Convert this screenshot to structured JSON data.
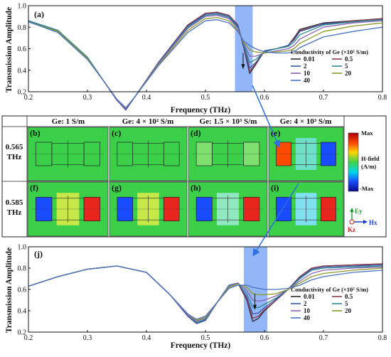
{
  "colors": {
    "band": "#6f9ef5",
    "arrow": "#2d6fdc",
    "series": [
      "#2c2c3a",
      "#8a3a4a",
      "#3a55a8",
      "#2b8a8f",
      "#8a62b5",
      "#8c9a2b",
      "#4a72c2"
    ]
  },
  "chart_data": [
    {
      "type": "line",
      "panel_letter": "(a)",
      "xlabel": "Frequency (THz)",
      "ylabel": "Transmission Amplitude",
      "xlim": [
        0.2,
        0.8
      ],
      "ylim": [
        0.2,
        1.0
      ],
      "xticks": [
        "0.2",
        "0.3",
        "0.4",
        "0.5",
        "0.6",
        "0.7",
        "0.8"
      ],
      "yticks": [
        "0.2",
        "0.4",
        "0.6",
        "0.8",
        "1.0"
      ],
      "highlight_band": [
        0.55,
        0.58
      ],
      "legend_title": "Conductivity of Ge (×10² S/m)",
      "legend_placement": "right",
      "x": [
        0.2,
        0.25,
        0.3,
        0.33,
        0.35,
        0.365,
        0.38,
        0.42,
        0.47,
        0.5,
        0.52,
        0.54,
        0.555,
        0.565,
        0.575,
        0.585,
        0.6,
        0.62,
        0.64,
        0.65,
        0.66,
        0.7,
        0.75,
        0.8
      ],
      "series": [
        {
          "name": "0.01",
          "values": [
            0.86,
            0.77,
            0.52,
            0.28,
            0.12,
            0.03,
            0.15,
            0.47,
            0.82,
            0.93,
            0.94,
            0.91,
            0.82,
            0.61,
            0.37,
            0.45,
            0.58,
            0.6,
            0.63,
            0.7,
            0.78,
            0.84,
            0.86,
            0.88
          ]
        },
        {
          "name": "0.5",
          "values": [
            0.86,
            0.77,
            0.52,
            0.28,
            0.12,
            0.035,
            0.15,
            0.47,
            0.82,
            0.93,
            0.94,
            0.91,
            0.82,
            0.62,
            0.39,
            0.46,
            0.58,
            0.6,
            0.63,
            0.69,
            0.77,
            0.83,
            0.86,
            0.88
          ]
        },
        {
          "name": "2",
          "values": [
            0.86,
            0.77,
            0.52,
            0.28,
            0.12,
            0.035,
            0.15,
            0.47,
            0.81,
            0.92,
            0.93,
            0.9,
            0.81,
            0.63,
            0.42,
            0.47,
            0.58,
            0.6,
            0.63,
            0.68,
            0.76,
            0.83,
            0.85,
            0.87
          ]
        },
        {
          "name": "5",
          "values": [
            0.86,
            0.77,
            0.52,
            0.28,
            0.12,
            0.04,
            0.15,
            0.46,
            0.8,
            0.91,
            0.92,
            0.89,
            0.8,
            0.64,
            0.47,
            0.5,
            0.57,
            0.6,
            0.62,
            0.66,
            0.73,
            0.82,
            0.85,
            0.87
          ]
        },
        {
          "name": "10",
          "values": [
            0.85,
            0.76,
            0.51,
            0.28,
            0.12,
            0.04,
            0.15,
            0.46,
            0.79,
            0.9,
            0.91,
            0.88,
            0.79,
            0.65,
            0.53,
            0.53,
            0.56,
            0.58,
            0.6,
            0.63,
            0.69,
            0.8,
            0.84,
            0.86
          ]
        },
        {
          "name": "20",
          "values": [
            0.85,
            0.76,
            0.51,
            0.28,
            0.13,
            0.05,
            0.15,
            0.45,
            0.77,
            0.88,
            0.89,
            0.86,
            0.77,
            0.66,
            0.59,
            0.57,
            0.56,
            0.57,
            0.58,
            0.6,
            0.65,
            0.76,
            0.81,
            0.84
          ]
        },
        {
          "name": "40",
          "values": [
            0.85,
            0.75,
            0.5,
            0.28,
            0.13,
            0.05,
            0.15,
            0.44,
            0.75,
            0.86,
            0.87,
            0.84,
            0.76,
            0.67,
            0.63,
            0.6,
            0.57,
            0.56,
            0.56,
            0.57,
            0.61,
            0.71,
            0.76,
            0.8
          ]
        }
      ]
    },
    {
      "type": "line",
      "panel_letter": "(j)",
      "xlabel": "Frequency (THz)",
      "ylabel": "Transmission Amplitude",
      "xlim": [
        0.2,
        0.8
      ],
      "ylim": [
        0.2,
        1.0
      ],
      "xticks": [
        "0.2",
        "0.3",
        "0.4",
        "0.5",
        "0.6",
        "0.7",
        "0.8"
      ],
      "yticks": [
        "0.2",
        "0.4",
        "0.6",
        "0.8",
        "1.0"
      ],
      "highlight_band": [
        0.565,
        0.605
      ],
      "legend_title": "Conductivity of Ge (×10² S/m)",
      "legend_placement": "bottom-right",
      "x": [
        0.2,
        0.25,
        0.3,
        0.35,
        0.4,
        0.44,
        0.47,
        0.485,
        0.5,
        0.52,
        0.54,
        0.555,
        0.57,
        0.58,
        0.59,
        0.6,
        0.62,
        0.64,
        0.66,
        0.68,
        0.7,
        0.75,
        0.8
      ],
      "series": [
        {
          "name": "0.01",
          "values": [
            0.63,
            0.72,
            0.79,
            0.82,
            0.76,
            0.55,
            0.35,
            0.28,
            0.31,
            0.48,
            0.64,
            0.66,
            0.5,
            0.3,
            0.33,
            0.4,
            0.5,
            0.6,
            0.72,
            0.8,
            0.82,
            0.83,
            0.84
          ]
        },
        {
          "name": "0.5",
          "values": [
            0.63,
            0.72,
            0.79,
            0.82,
            0.76,
            0.55,
            0.35,
            0.28,
            0.31,
            0.48,
            0.64,
            0.66,
            0.51,
            0.33,
            0.35,
            0.41,
            0.5,
            0.6,
            0.72,
            0.8,
            0.82,
            0.83,
            0.84
          ]
        },
        {
          "name": "2",
          "values": [
            0.63,
            0.72,
            0.79,
            0.82,
            0.76,
            0.55,
            0.35,
            0.28,
            0.31,
            0.48,
            0.64,
            0.66,
            0.53,
            0.37,
            0.38,
            0.43,
            0.51,
            0.6,
            0.71,
            0.79,
            0.81,
            0.82,
            0.83
          ]
        },
        {
          "name": "5",
          "values": [
            0.63,
            0.72,
            0.79,
            0.82,
            0.76,
            0.55,
            0.36,
            0.29,
            0.32,
            0.48,
            0.64,
            0.66,
            0.56,
            0.43,
            0.43,
            0.46,
            0.52,
            0.6,
            0.7,
            0.78,
            0.8,
            0.81,
            0.82
          ]
        },
        {
          "name": "10",
          "values": [
            0.63,
            0.72,
            0.79,
            0.82,
            0.76,
            0.55,
            0.36,
            0.3,
            0.33,
            0.48,
            0.63,
            0.66,
            0.59,
            0.5,
            0.49,
            0.5,
            0.54,
            0.6,
            0.68,
            0.75,
            0.78,
            0.8,
            0.81
          ]
        },
        {
          "name": "20",
          "values": [
            0.63,
            0.72,
            0.79,
            0.82,
            0.76,
            0.55,
            0.37,
            0.31,
            0.34,
            0.48,
            0.62,
            0.65,
            0.62,
            0.56,
            0.55,
            0.55,
            0.56,
            0.6,
            0.66,
            0.72,
            0.75,
            0.78,
            0.8
          ]
        },
        {
          "name": "40",
          "values": [
            0.63,
            0.72,
            0.79,
            0.82,
            0.76,
            0.55,
            0.37,
            0.32,
            0.35,
            0.48,
            0.61,
            0.64,
            0.64,
            0.62,
            0.61,
            0.6,
            0.6,
            0.61,
            0.64,
            0.69,
            0.72,
            0.76,
            0.78
          ]
        }
      ]
    }
  ],
  "field_grid": {
    "headers": [
      "Ge: 1 S/m",
      "Ge: 4 × 10² S/m",
      "Ge: 1.5 × 10³ S/m",
      "Ge: 4 × 10³ S/m"
    ],
    "rows": [
      {
        "label_line1": "0.565",
        "label_line2": "THz",
        "panels": [
          "(b)",
          "(c)",
          "(d)",
          "(e)"
        ]
      },
      {
        "label_line1": "0.585",
        "label_line2": "THz",
        "panels": [
          "(f)",
          "(g)",
          "(h)",
          "(i)"
        ]
      }
    ],
    "colorbar": {
      "max": "Max",
      "min": "-Max",
      "label_line1": "H-field",
      "label_line2": "(A/m)"
    },
    "axes_labels": {
      "y": "Ey",
      "x": "Hx",
      "z": "Kz"
    }
  }
}
